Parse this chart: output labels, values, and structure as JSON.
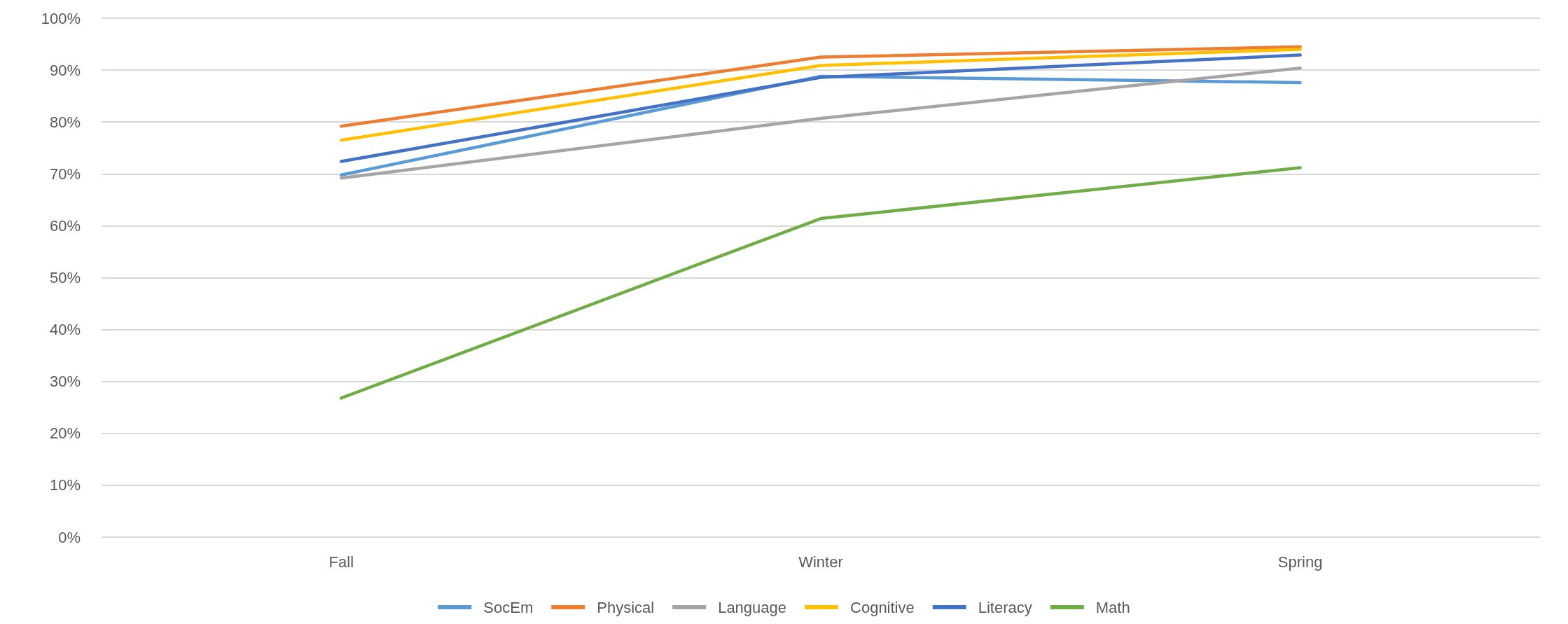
{
  "chart_data": {
    "type": "line",
    "categories": [
      "Fall",
      "Winter",
      "Spring"
    ],
    "series": [
      {
        "name": "SocEm",
        "color": "#5b9bd5",
        "values": [
          69.8,
          88.8,
          87.6
        ]
      },
      {
        "name": "Physical",
        "color": "#ed7d31",
        "values": [
          79.2,
          92.5,
          94.5
        ]
      },
      {
        "name": "Language",
        "color": "#a5a5a5",
        "values": [
          69.2,
          80.7,
          90.4
        ]
      },
      {
        "name": "Cognitive",
        "color": "#ffc000",
        "values": [
          76.5,
          90.9,
          94.0
        ]
      },
      {
        "name": "Literacy",
        "color": "#4472c4",
        "values": [
          72.4,
          88.6,
          92.9
        ]
      },
      {
        "name": "Math",
        "color": "#70ad47",
        "values": [
          26.8,
          61.4,
          71.2
        ]
      }
    ],
    "ylim": [
      0,
      100
    ],
    "yticks": [
      {
        "value": 0,
        "label": "0%"
      },
      {
        "value": 10,
        "label": "10%"
      },
      {
        "value": 20,
        "label": "20%"
      },
      {
        "value": 30,
        "label": "30%"
      },
      {
        "value": 40,
        "label": "40%"
      },
      {
        "value": 50,
        "label": "50%"
      },
      {
        "value": 60,
        "label": "60%"
      },
      {
        "value": 70,
        "label": "70%"
      },
      {
        "value": 80,
        "label": "80%"
      },
      {
        "value": 90,
        "label": "90%"
      },
      {
        "value": 100,
        "label": "100%"
      }
    ],
    "grid": "y",
    "legend": "bottom",
    "marker": "none"
  }
}
